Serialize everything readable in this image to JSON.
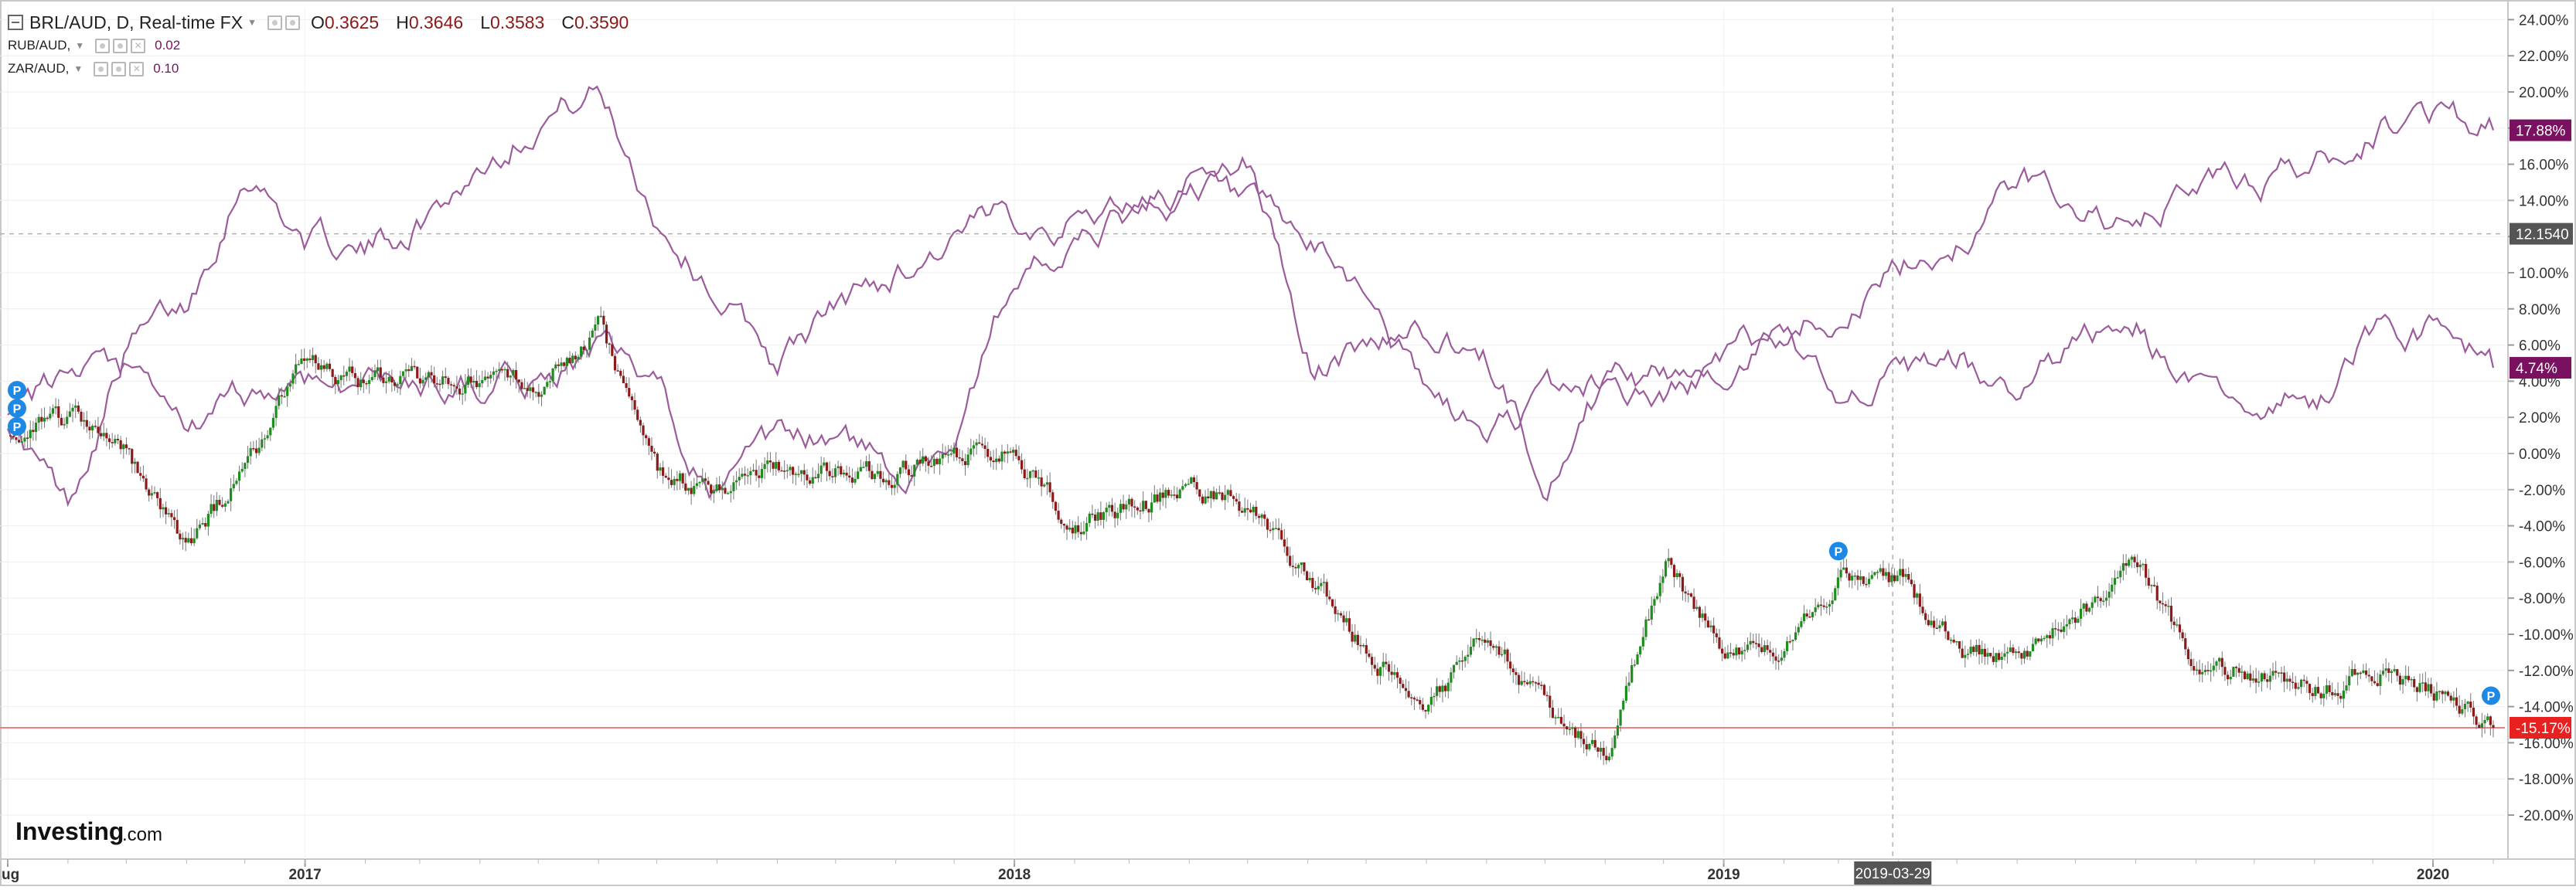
{
  "legend": {
    "symbol": "BRL/AUD, D, Real-time FX",
    "open_label": "O",
    "open": "0.3625",
    "high_label": "H",
    "high": "0.3646",
    "low_label": "L",
    "low": "0.3583",
    "close_label": "C",
    "close": "0.3590",
    "rub_label": "RUB/AUD,",
    "rub_value": "0.02",
    "zar_label": "ZAR/AUD,",
    "zar_value": "0.10"
  },
  "chart_data": {
    "type": "line",
    "main_series_style": "candlestick",
    "y_axis_position": "right",
    "y_unit": "percent change",
    "ylim": [
      -21,
      25
    ],
    "y_ticks": [
      "24.00%",
      "22.00%",
      "20.00%",
      "18.00%",
      "16.00%",
      "14.00%",
      "12.00%",
      "10.00%",
      "8.00%",
      "6.00%",
      "4.00%",
      "2.00%",
      "0.00%",
      "-2.00%",
      "-4.00%",
      "-6.00%",
      "-8.00%",
      "-10.00%",
      "-12.00%",
      "-14.00%",
      "-16.00%",
      "-18.00%",
      "-20.00%"
    ],
    "x_range": [
      "2016-08",
      "2020-02"
    ],
    "x_ticks": [
      {
        "label": "ug",
        "date": "2016-08"
      },
      {
        "label": "2017",
        "date": "2017-01"
      },
      {
        "label": "2018",
        "date": "2018-01"
      },
      {
        "label": "2019",
        "date": "2019-01"
      },
      {
        "label": "2020",
        "date": "2020-01"
      }
    ],
    "crosshair_date_label": "2019-03-29",
    "crosshair_price_label": "12.1540",
    "crosshair_value": 12.154,
    "series": [
      {
        "name": "BRL/AUD",
        "color_up": "#1e8c1e",
        "color_down": "#8b1a1a",
        "last_label": "-15.17%",
        "last_value": -15.17,
        "points": [
          [
            "2016-08",
            1
          ],
          [
            "2016-09",
            2
          ],
          [
            "2016-10",
            0
          ],
          [
            "2016-11",
            -5
          ],
          [
            "2016-12",
            -1
          ],
          [
            "2017-01",
            5
          ],
          [
            "2017-02",
            4
          ],
          [
            "2017-03",
            4
          ],
          [
            "2017-04",
            4
          ],
          [
            "2017-05",
            4
          ],
          [
            "2017-06",
            7
          ],
          [
            "2017-07",
            -1
          ],
          [
            "2017-08",
            -2
          ],
          [
            "2017-09",
            -1
          ],
          [
            "2017-10",
            -1
          ],
          [
            "2017-11",
            -1
          ],
          [
            "2017-12",
            0
          ],
          [
            "2018-01",
            0
          ],
          [
            "2018-02",
            -4
          ],
          [
            "2018-03",
            -3
          ],
          [
            "2018-04",
            -2
          ],
          [
            "2018-05",
            -3
          ],
          [
            "2018-06",
            -7
          ],
          [
            "2018-07",
            -11
          ],
          [
            "2018-08",
            -14
          ],
          [
            "2018-09",
            -10
          ],
          [
            "2018-10",
            -14
          ],
          [
            "2018-11",
            -17
          ],
          [
            "2018-12",
            -6
          ],
          [
            "2019-01",
            -11
          ],
          [
            "2019-02",
            -11
          ],
          [
            "2019-03",
            -7
          ],
          [
            "2019-04",
            -7
          ],
          [
            "2019-05",
            -11
          ],
          [
            "2019-06",
            -11
          ],
          [
            "2019-07",
            -9
          ],
          [
            "2019-08",
            -6
          ],
          [
            "2019-09",
            -12
          ],
          [
            "2019-10",
            -12
          ],
          [
            "2019-11",
            -13
          ],
          [
            "2019-12",
            -12
          ],
          [
            "2020-01",
            -13
          ],
          [
            "2020-02",
            -15.17
          ]
        ]
      },
      {
        "name": "RUB/AUD",
        "color": "#9c5c9c",
        "last_label": "17.88%",
        "last_value": 17.88,
        "points": [
          [
            "2016-08",
            2
          ],
          [
            "2016-09",
            -3
          ],
          [
            "2016-10",
            6
          ],
          [
            "2016-11",
            8
          ],
          [
            "2016-12",
            16
          ],
          [
            "2017-01",
            12
          ],
          [
            "2017-02",
            11
          ],
          [
            "2017-03",
            13
          ],
          [
            "2017-04",
            16
          ],
          [
            "2017-05",
            19
          ],
          [
            "2017-06",
            20
          ],
          [
            "2017-07",
            13
          ],
          [
            "2017-08",
            9
          ],
          [
            "2017-09",
            5
          ],
          [
            "2017-10",
            8
          ],
          [
            "2017-11",
            10
          ],
          [
            "2017-12",
            12
          ],
          [
            "2018-01",
            13
          ],
          [
            "2018-02",
            13
          ],
          [
            "2018-03",
            14
          ],
          [
            "2018-04",
            15
          ],
          [
            "2018-05",
            13
          ],
          [
            "2018-06",
            11
          ],
          [
            "2018-07",
            9
          ],
          [
            "2018-08",
            3
          ],
          [
            "2018-09",
            1
          ],
          [
            "2018-10",
            3
          ],
          [
            "2018-11",
            4
          ],
          [
            "2018-12",
            3
          ],
          [
            "2019-01",
            5
          ],
          [
            "2019-02",
            7
          ],
          [
            "2019-03",
            8
          ],
          [
            "2019-04",
            10
          ],
          [
            "2019-05",
            12
          ],
          [
            "2019-06",
            15
          ],
          [
            "2019-07",
            14
          ],
          [
            "2019-08",
            12
          ],
          [
            "2019-09",
            15
          ],
          [
            "2019-10",
            15
          ],
          [
            "2019-11",
            16
          ],
          [
            "2019-12",
            18
          ],
          [
            "2020-01",
            19
          ],
          [
            "2020-02",
            17.88
          ]
        ]
      },
      {
        "name": "ZAR/AUD",
        "color": "#9c5c9c",
        "last_label": "4.74%",
        "last_value": 4.74,
        "points": [
          [
            "2016-08",
            2
          ],
          [
            "2016-09",
            4
          ],
          [
            "2016-10",
            4
          ],
          [
            "2016-11",
            1
          ],
          [
            "2016-12",
            3
          ],
          [
            "2017-01",
            4
          ],
          [
            "2017-02",
            4
          ],
          [
            "2017-03",
            4
          ],
          [
            "2017-04",
            4
          ],
          [
            "2017-05",
            4
          ],
          [
            "2017-06",
            6
          ],
          [
            "2017-07",
            3
          ],
          [
            "2017-08",
            -2
          ],
          [
            "2017-09",
            0
          ],
          [
            "2017-10",
            1
          ],
          [
            "2017-11",
            -1
          ],
          [
            "2017-12",
            1
          ],
          [
            "2018-01",
            10
          ],
          [
            "2018-02",
            11
          ],
          [
            "2018-03",
            13
          ],
          [
            "2018-04",
            14
          ],
          [
            "2018-05",
            16
          ],
          [
            "2018-06",
            5
          ],
          [
            "2018-07",
            6
          ],
          [
            "2018-08",
            7
          ],
          [
            "2018-09",
            5
          ],
          [
            "2018-10",
            -1
          ],
          [
            "2018-11",
            4
          ],
          [
            "2018-12",
            4
          ],
          [
            "2019-01",
            5
          ],
          [
            "2019-02",
            7
          ],
          [
            "2019-03",
            4
          ],
          [
            "2019-04",
            4
          ],
          [
            "2019-05",
            5
          ],
          [
            "2019-06",
            3
          ],
          [
            "2019-07",
            6
          ],
          [
            "2019-08",
            7
          ],
          [
            "2019-09",
            3
          ],
          [
            "2019-10",
            3
          ],
          [
            "2019-11",
            3
          ],
          [
            "2019-12",
            7
          ],
          [
            "2020-01",
            7
          ],
          [
            "2020-02",
            4.74
          ]
        ]
      }
    ],
    "markers": [
      {
        "label": "P",
        "date": "2016-08",
        "value": 3.5
      },
      {
        "label": "P",
        "date": "2016-08",
        "value": 2.5
      },
      {
        "label": "P",
        "date": "2016-08",
        "value": 1.5
      },
      {
        "label": "P",
        "date": "2019-03",
        "value": -5.4
      },
      {
        "label": "P",
        "date": "2020-02",
        "value": -13.4
      }
    ]
  },
  "branding": {
    "logo_text": "Investing",
    "logo_suffix": ".com"
  }
}
